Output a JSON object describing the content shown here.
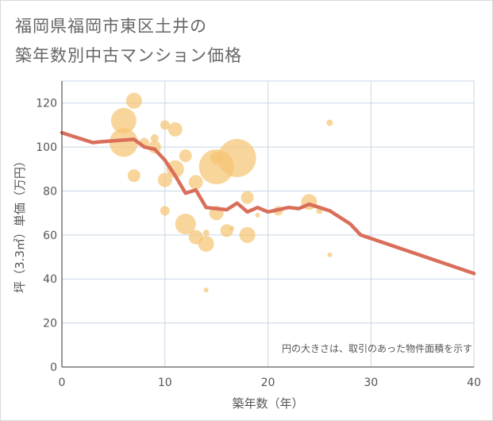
{
  "title_lines": [
    "福岡県福岡市東区土井の",
    "築年数別中古マンション価格"
  ],
  "colors": {
    "line": "#d96f5a",
    "bubble": "#f5c574",
    "grid": "#c9d6e8",
    "text": "#555555"
  },
  "chart_data": {
    "type": "scatter",
    "title": "福岡県福岡市東区土井の築年数別中古マンション価格",
    "xlabel": "築年数（年）",
    "ylabel": "坪（3.3㎡）単価（万円）",
    "xlim": [
      0,
      40
    ],
    "ylim": [
      0,
      130
    ],
    "xticks": [
      0,
      10,
      20,
      30,
      40
    ],
    "yticks": [
      0,
      20,
      40,
      60,
      80,
      100,
      120
    ],
    "grid": true,
    "note": "円の大きさは、取引のあった物件面積を示す",
    "bubbles": [
      {
        "x": 6,
        "y": 112,
        "size": 16
      },
      {
        "x": 6,
        "y": 102,
        "size": 18
      },
      {
        "x": 7,
        "y": 121,
        "size": 10
      },
      {
        "x": 7,
        "y": 87,
        "size": 8
      },
      {
        "x": 8,
        "y": 102,
        "size": 6
      },
      {
        "x": 9,
        "y": 100,
        "size": 8
      },
      {
        "x": 9,
        "y": 104,
        "size": 5
      },
      {
        "x": 10,
        "y": 110,
        "size": 6
      },
      {
        "x": 10,
        "y": 85,
        "size": 9
      },
      {
        "x": 10,
        "y": 71,
        "size": 6
      },
      {
        "x": 11,
        "y": 108,
        "size": 9
      },
      {
        "x": 11,
        "y": 90,
        "size": 11
      },
      {
        "x": 12,
        "y": 96,
        "size": 8
      },
      {
        "x": 12,
        "y": 65,
        "size": 13
      },
      {
        "x": 13,
        "y": 84,
        "size": 9
      },
      {
        "x": 13,
        "y": 59,
        "size": 9
      },
      {
        "x": 14,
        "y": 61,
        "size": 4
      },
      {
        "x": 14,
        "y": 56,
        "size": 10
      },
      {
        "x": 14,
        "y": 35,
        "size": 3
      },
      {
        "x": 15,
        "y": 95,
        "size": 8
      },
      {
        "x": 15,
        "y": 91,
        "size": 22
      },
      {
        "x": 15,
        "y": 70,
        "size": 9
      },
      {
        "x": 16,
        "y": 62,
        "size": 8
      },
      {
        "x": 16.5,
        "y": 63,
        "size": 3
      },
      {
        "x": 17,
        "y": 95,
        "size": 24
      },
      {
        "x": 18,
        "y": 77,
        "size": 8
      },
      {
        "x": 18,
        "y": 60,
        "size": 10
      },
      {
        "x": 19,
        "y": 69,
        "size": 3
      },
      {
        "x": 21,
        "y": 71,
        "size": 6
      },
      {
        "x": 24,
        "y": 75,
        "size": 10
      },
      {
        "x": 25,
        "y": 71,
        "size": 4
      },
      {
        "x": 26,
        "y": 111,
        "size": 4
      },
      {
        "x": 26,
        "y": 51,
        "size": 3
      }
    ],
    "series": [
      {
        "type": "line",
        "x": [
          0,
          3,
          4,
          7,
          8,
          9,
          10,
          11,
          12,
          13,
          14,
          15,
          16,
          17,
          18,
          19,
          20,
          21,
          22,
          23,
          24,
          25,
          26,
          28,
          29,
          40
        ],
        "values": [
          106.5,
          102,
          102.5,
          103.5,
          100,
          99,
          94,
          87,
          79,
          80.5,
          72.5,
          72,
          71.5,
          74.5,
          70.5,
          72.5,
          70.5,
          71.5,
          72.5,
          72,
          74,
          72.5,
          71,
          65,
          60,
          42.5
        ]
      }
    ]
  }
}
